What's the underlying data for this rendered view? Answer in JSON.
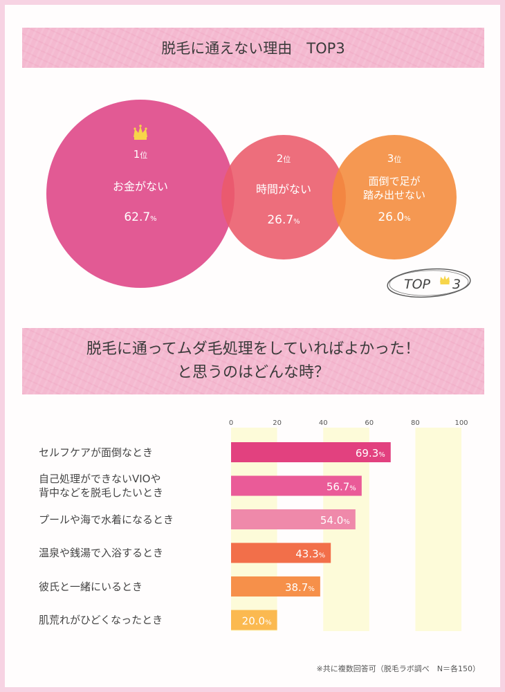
{
  "header1": {
    "title": "脱毛に通えない理由　TOP3"
  },
  "top3": {
    "items": [
      {
        "rank": "1",
        "rank_unit": "位",
        "reason": "お金がない",
        "value": "62.7",
        "unit": "%",
        "color": "#e0518e"
      },
      {
        "rank": "2",
        "rank_unit": "位",
        "reason": "時間がない",
        "value": "26.7",
        "unit": "%",
        "color": "#ea5a6a"
      },
      {
        "rank": "3",
        "rank_unit": "位",
        "reason_line1": "面倒で足が",
        "reason_line2": "踏み出せない",
        "value": "26.0",
        "unit": "%",
        "color": "#f48a3a"
      }
    ],
    "crown_icon": "crown-icon",
    "badge": {
      "text": "TOP",
      "number": "3"
    }
  },
  "header2": {
    "line1": "脱毛に通ってムダ毛処理をしていればよかった！",
    "line2": "と思うのはどんな時？"
  },
  "chart_data": {
    "type": "bar",
    "orientation": "horizontal",
    "categories": [
      "セルフケアが面倒なとき",
      "自己処理ができないVIOや\n背中などを脱毛したいとき",
      "プールや海で水着になるとき",
      "温泉や銭湯で入浴するとき",
      "彼氏と一緒にいるとき",
      "肌荒れがひどくなったとき"
    ],
    "values": [
      69.3,
      56.7,
      54.0,
      43.3,
      38.7,
      20.0
    ],
    "value_labels": [
      "69.3",
      "56.7",
      "54.0",
      "43.3",
      "38.7",
      "20.0"
    ],
    "unit": "%",
    "xlim": [
      0,
      100
    ],
    "ticks": [
      0,
      20,
      40,
      60,
      80,
      100
    ],
    "tick_labels": [
      "0",
      "20",
      "40",
      "60",
      "80",
      "100"
    ],
    "bar_colors": [
      "#e2417f",
      "#ea5b98",
      "#ef89aa",
      "#f26f4a",
      "#f6904a",
      "#fbb950"
    ],
    "band_color": "#fdfbd9",
    "grid": false,
    "legend": "none"
  },
  "footnote": "※共に複数回答可（脱毛ラボ調べ　N＝各150）"
}
